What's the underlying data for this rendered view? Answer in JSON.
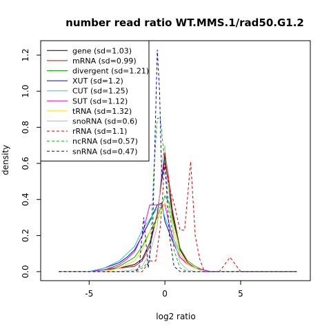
{
  "chart_data": {
    "type": "line",
    "title": "number read ratio WT.MMS.1/rad50.G1.2",
    "xlabel": "log2 ratio",
    "ylabel": "density",
    "xlim": [
      -8.2,
      9.6
    ],
    "ylim": [
      -0.05,
      1.28
    ],
    "x_ticks": [
      -5,
      0,
      5
    ],
    "y_ticks": [
      0.0,
      0.2,
      0.4,
      0.6,
      0.8,
      1.0,
      1.2
    ],
    "grid": false,
    "legend_position": "top-left",
    "series": [
      {
        "name": "gene (sd=1.03)",
        "color": "#000000",
        "dash": "solid",
        "x": [
          -7,
          -6,
          -5,
          -4,
          -3,
          -2,
          -1.5,
          -1,
          -0.5,
          0,
          0.2,
          0.5,
          1,
          1.5,
          2,
          2.5,
          3,
          4,
          5,
          6,
          7,
          8.7
        ],
        "y": [
          0,
          0,
          0,
          0.01,
          0.02,
          0.04,
          0.07,
          0.16,
          0.32,
          0.64,
          0.5,
          0.32,
          0.12,
          0.05,
          0.02,
          0.01,
          0,
          0,
          0,
          0,
          0,
          0
        ]
      },
      {
        "name": "mRNA (sd=0.99)",
        "color": "#dd0000",
        "dash": "solid",
        "x": [
          -7,
          -6,
          -5,
          -4,
          -3,
          -2,
          -1.5,
          -1,
          -0.5,
          0,
          0.2,
          0.5,
          1,
          1.5,
          2,
          2.5,
          3,
          4,
          5,
          6,
          7,
          8.7
        ],
        "y": [
          0,
          0,
          0,
          0.01,
          0.02,
          0.03,
          0.06,
          0.14,
          0.32,
          0.66,
          0.55,
          0.34,
          0.13,
          0.05,
          0.02,
          0.01,
          0,
          0,
          0,
          0,
          0,
          0
        ]
      },
      {
        "name": "divergent (sd=1.21)",
        "color": "#00bb00",
        "dash": "solid",
        "x": [
          -7,
          -6,
          -5,
          -4,
          -3,
          -2,
          -1.5,
          -1,
          -0.5,
          0,
          0.3,
          0.6,
          1,
          1.5,
          2,
          2.5,
          3,
          4,
          5,
          6,
          7,
          8.7
        ],
        "y": [
          0,
          0,
          0,
          0.01,
          0.03,
          0.08,
          0.14,
          0.22,
          0.3,
          0.42,
          0.38,
          0.26,
          0.13,
          0.06,
          0.03,
          0.01,
          0,
          0,
          0,
          0,
          0,
          0
        ]
      },
      {
        "name": "XUT (sd=1.2)",
        "color": "#0000cc",
        "dash": "solid",
        "x": [
          -7,
          -6,
          -5,
          -4,
          -3,
          -2.5,
          -2,
          -1.5,
          -1,
          -0.5,
          -0.2,
          0,
          0.5,
          1,
          1.5,
          2,
          2.5,
          3,
          4,
          5,
          6,
          7,
          8.7
        ],
        "y": [
          0,
          0,
          0,
          0.02,
          0.05,
          0.08,
          0.12,
          0.2,
          0.28,
          0.37,
          0.38,
          0.28,
          0.17,
          0.08,
          0.04,
          0.02,
          0.01,
          0,
          0,
          0,
          0,
          0,
          0
        ]
      },
      {
        "name": "CUT (sd=1.25)",
        "color": "#00d8d8",
        "dash": "solid",
        "x": [
          -7,
          -6,
          -5,
          -4,
          -3,
          -2.5,
          -2,
          -1.5,
          -1,
          -0.5,
          -0.2,
          0,
          0.5,
          1,
          1.5,
          2,
          2.5,
          3,
          4,
          5,
          6,
          7,
          8.7
        ],
        "y": [
          0,
          0,
          0,
          0.02,
          0.06,
          0.1,
          0.14,
          0.23,
          0.29,
          0.35,
          0.36,
          0.3,
          0.2,
          0.1,
          0.04,
          0.02,
          0.01,
          0,
          0,
          0,
          0,
          0,
          0
        ]
      },
      {
        "name": "SUT (sd=1.12)",
        "color": "#ee00ee",
        "dash": "solid",
        "x": [
          -7,
          -6,
          -5,
          -4,
          -3,
          -2.5,
          -2,
          -1.5,
          -1,
          -0.5,
          0,
          0.3,
          0.6,
          1,
          1.5,
          2,
          2.5,
          3,
          4,
          5,
          6,
          7,
          8.7
        ],
        "y": [
          0,
          0,
          0,
          0.01,
          0.04,
          0.07,
          0.11,
          0.2,
          0.37,
          0.37,
          0.37,
          0.26,
          0.15,
          0.08,
          0.04,
          0.02,
          0.01,
          0,
          0,
          0,
          0,
          0,
          0
        ]
      },
      {
        "name": "tRNA (sd=1.32)",
        "color": "#ffd700",
        "dash": "solid",
        "x": [
          -7,
          -6,
          -5,
          -4,
          -3,
          -2,
          -1.5,
          -1,
          -0.5,
          0,
          0.3,
          0.6,
          1,
          1.5,
          2,
          2.5,
          3,
          4,
          5,
          6,
          7,
          8.7
        ],
        "y": [
          0,
          0,
          0,
          0,
          0.02,
          0.06,
          0.12,
          0.22,
          0.28,
          0.38,
          0.34,
          0.22,
          0.1,
          0.04,
          0.02,
          0,
          0,
          0,
          0,
          0,
          0,
          0
        ]
      },
      {
        "name": "snoRNA (sd=0.6)",
        "color": "#b8b8b8",
        "dash": "solid",
        "x": [
          -7,
          -6,
          -5,
          -4,
          -3,
          -2,
          -1.5,
          -1,
          -0.5,
          -0.2,
          0,
          0.3,
          0.6,
          1,
          1.5,
          2,
          2.5,
          3,
          4,
          5,
          6,
          7,
          8.7
        ],
        "y": [
          0,
          0,
          0,
          0,
          0,
          0.01,
          0.03,
          0.1,
          0.25,
          0.6,
          0.7,
          0.42,
          0.18,
          0.05,
          0.01,
          0,
          0,
          0,
          0,
          0,
          0,
          0,
          0
        ]
      },
      {
        "name": "rRNA (sd=1.1)",
        "color": "#dd0000",
        "dash": "dashed",
        "x": [
          -7,
          -6,
          -5,
          -4,
          -3,
          -2,
          -1.5,
          -1,
          -0.6,
          -0.3,
          0,
          0.3,
          0.6,
          1,
          1.3,
          1.7,
          2,
          2.3,
          2.6,
          3,
          3.6,
          4.3,
          5,
          6,
          7,
          8.7
        ],
        "y": [
          0,
          0,
          0,
          0,
          0,
          0,
          0,
          0.06,
          0.06,
          0.25,
          0.6,
          0.47,
          0.38,
          0.23,
          0.23,
          0.61,
          0.2,
          0.07,
          0,
          0,
          0,
          0.08,
          0,
          0,
          0,
          0
        ]
      },
      {
        "name": "ncRNA (sd=0.57)",
        "color": "#00bb00",
        "dash": "dashed",
        "x": [
          -7,
          -6,
          -5,
          -4,
          -3,
          -2,
          -1.5,
          -1,
          -0.7,
          -0.5,
          -0.3,
          -0.1,
          0.2,
          0.6,
          1,
          1.5,
          2,
          3,
          4,
          5,
          6,
          7,
          8.7
        ],
        "y": [
          0,
          0,
          0,
          0,
          0,
          0,
          0.02,
          0.06,
          0.6,
          0.85,
          0.85,
          0.68,
          0.42,
          0.12,
          0.02,
          0,
          0,
          0,
          0,
          0,
          0,
          0,
          0
        ]
      },
      {
        "name": "snRNA (sd=0.47)",
        "color": "#0000cc",
        "dash": "dashed",
        "x": [
          -7,
          -6,
          -5,
          -4,
          -3,
          -2,
          -1.7,
          -1.4,
          -1.1,
          -0.8,
          -0.5,
          -0.35,
          -0.2,
          0,
          0.3,
          0.6,
          1,
          1.5,
          2,
          3,
          4,
          5,
          6,
          7,
          8.7
        ],
        "y": [
          0,
          0,
          0,
          0,
          0,
          0,
          0.02,
          0.3,
          0.02,
          0.26,
          1.23,
          1.0,
          0.5,
          0.6,
          0.2,
          0.03,
          0,
          0,
          0,
          0,
          0,
          0,
          0,
          0,
          0
        ]
      }
    ]
  }
}
